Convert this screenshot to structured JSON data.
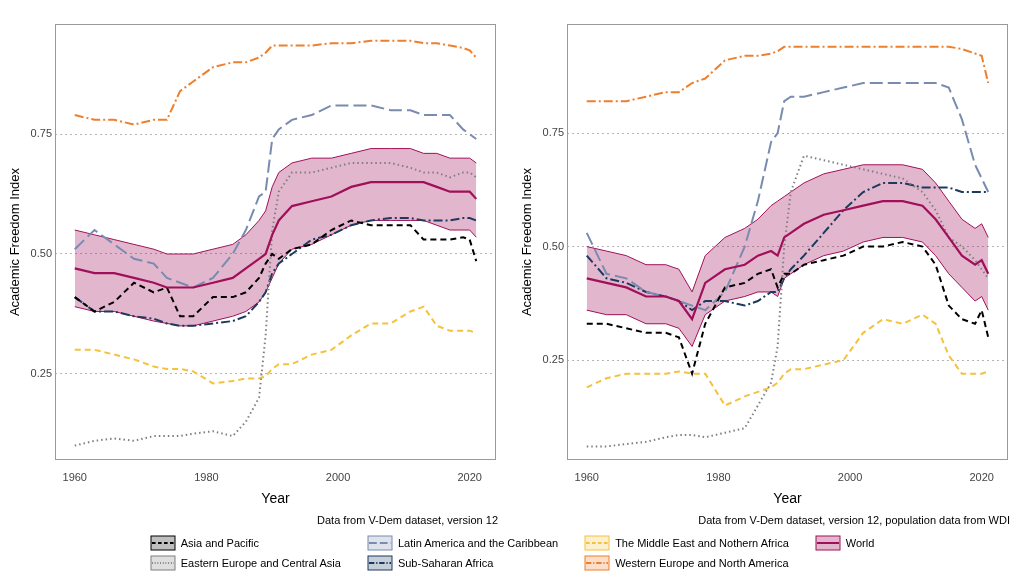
{
  "chart_data": [
    {
      "type": "line",
      "caption": "Data from V-Dem dataset, version 12",
      "x_label": "Year",
      "y_label": "Academic Freedom Index",
      "xlim": [
        1957,
        2024
      ],
      "xticks": [
        1960,
        1980,
        2000,
        2020
      ],
      "ylim": [
        0.07,
        0.98
      ],
      "yticks": [
        0.25,
        {
          "value": 0.5,
          "label": "0.50"
        },
        0.75
      ],
      "grid": "y",
      "legend": "bottom",
      "x": [
        1960,
        1963,
        1966,
        1969,
        1972,
        1974,
        1976,
        1978,
        1981,
        1984,
        1986,
        1988,
        1989,
        1990,
        1991,
        1993,
        1996,
        1999,
        2002,
        2005,
        2008,
        2011,
        2013,
        2015,
        2017,
        2019,
        2020,
        2021
      ],
      "series": [
        {
          "name": "Asia and Pacific",
          "color": "#000000",
          "line_style": "dashed",
          "values": [
            0.41,
            0.38,
            0.4,
            0.44,
            0.42,
            0.43,
            0.37,
            0.37,
            0.41,
            0.41,
            0.42,
            0.45,
            0.48,
            0.5,
            0.49,
            0.51,
            0.52,
            0.55,
            0.57,
            0.56,
            0.56,
            0.56,
            0.53,
            0.53,
            0.53,
            0.535,
            0.53,
            0.485
          ]
        },
        {
          "name": "Eastern Europe and Central Asia",
          "color": "#7f7f7f",
          "line_style": "dotted",
          "values": [
            0.1,
            0.11,
            0.115,
            0.11,
            0.12,
            0.12,
            0.12,
            0.125,
            0.13,
            0.12,
            0.15,
            0.2,
            0.33,
            0.55,
            0.63,
            0.67,
            0.67,
            0.68,
            0.69,
            0.69,
            0.69,
            0.68,
            0.67,
            0.67,
            0.66,
            0.67,
            0.67,
            0.66
          ]
        },
        {
          "name": "Latin America and the Caribbean",
          "color": "#7a8bb0",
          "line_style": "longdash",
          "values": [
            0.51,
            0.55,
            0.52,
            0.49,
            0.48,
            0.45,
            0.44,
            0.43,
            0.45,
            0.5,
            0.55,
            0.62,
            0.63,
            0.74,
            0.76,
            0.78,
            0.79,
            0.81,
            0.81,
            0.81,
            0.8,
            0.8,
            0.79,
            0.79,
            0.79,
            0.76,
            0.75,
            0.74
          ]
        },
        {
          "name": "Sub-Saharan Africa",
          "color": "#1d3a5e",
          "line_style": "dashdot",
          "values": [
            0.41,
            0.38,
            0.38,
            0.37,
            0.365,
            0.355,
            0.35,
            0.35,
            0.355,
            0.36,
            0.37,
            0.4,
            0.42,
            0.46,
            0.48,
            0.5,
            0.53,
            0.54,
            0.56,
            0.57,
            0.575,
            0.575,
            0.57,
            0.57,
            0.57,
            0.575,
            0.575,
            0.57
          ]
        },
        {
          "name": "The Middle East and Nothern Africa",
          "color": "#f5c23e",
          "line_style": "dashed",
          "values": [
            0.3,
            0.3,
            0.29,
            0.28,
            0.265,
            0.26,
            0.26,
            0.255,
            0.23,
            0.235,
            0.24,
            0.24,
            0.245,
            0.26,
            0.27,
            0.27,
            0.29,
            0.3,
            0.33,
            0.355,
            0.355,
            0.38,
            0.39,
            0.35,
            0.34,
            0.34,
            0.34,
            0.335
          ]
        },
        {
          "name": "Western Europe and North America",
          "color": "#ee7f2d",
          "line_style": "dashdot",
          "values": [
            0.79,
            0.78,
            0.78,
            0.77,
            0.78,
            0.78,
            0.84,
            0.86,
            0.89,
            0.9,
            0.9,
            0.91,
            0.92,
            0.935,
            0.935,
            0.935,
            0.935,
            0.94,
            0.94,
            0.945,
            0.945,
            0.945,
            0.94,
            0.94,
            0.935,
            0.93,
            0.925,
            0.91
          ]
        },
        {
          "name": "World",
          "color": "#a0105a",
          "line_style": "solid",
          "values": [
            0.47,
            0.46,
            0.46,
            0.45,
            0.44,
            0.43,
            0.43,
            0.43,
            0.44,
            0.45,
            0.47,
            0.49,
            0.5,
            0.54,
            0.57,
            0.6,
            0.61,
            0.62,
            0.64,
            0.65,
            0.65,
            0.65,
            0.65,
            0.64,
            0.63,
            0.63,
            0.63,
            0.615
          ],
          "upper": [
            0.55,
            0.54,
            0.53,
            0.52,
            0.51,
            0.5,
            0.5,
            0.5,
            0.51,
            0.52,
            0.54,
            0.57,
            0.59,
            0.64,
            0.67,
            0.69,
            0.7,
            0.7,
            0.71,
            0.72,
            0.72,
            0.72,
            0.71,
            0.71,
            0.7,
            0.7,
            0.7,
            0.69
          ],
          "lower": [
            0.39,
            0.38,
            0.38,
            0.37,
            0.36,
            0.355,
            0.35,
            0.35,
            0.36,
            0.37,
            0.38,
            0.4,
            0.42,
            0.45,
            0.48,
            0.51,
            0.52,
            0.54,
            0.56,
            0.57,
            0.57,
            0.57,
            0.57,
            0.56,
            0.55,
            0.55,
            0.55,
            0.535
          ]
        }
      ]
    },
    {
      "type": "line",
      "caption": "Data from V-Dem dataset, version 12, population data from WDI",
      "x_label": "Year",
      "y_label": "Academic Freedom Index",
      "xlim": [
        1957,
        2024
      ],
      "xticks": [
        1960,
        1980,
        2000,
        2020
      ],
      "ylim": [
        0.03,
        0.99
      ],
      "yticks": [
        0.25,
        {
          "value": 0.5,
          "label": "0.50"
        },
        0.75
      ],
      "grid": "y",
      "legend": "bottom",
      "x": [
        1960,
        1963,
        1966,
        1969,
        1972,
        1974,
        1976,
        1978,
        1981,
        1984,
        1986,
        1988,
        1989,
        1990,
        1991,
        1993,
        1996,
        1999,
        2002,
        2005,
        2008,
        2011,
        2013,
        2015,
        2017,
        2019,
        2020,
        2021
      ],
      "series": [
        {
          "name": "Asia and Pacific",
          "color": "#000000",
          "line_style": "dashed",
          "values": [
            0.33,
            0.33,
            0.32,
            0.31,
            0.31,
            0.3,
            0.22,
            0.33,
            0.41,
            0.42,
            0.44,
            0.45,
            0.41,
            0.44,
            0.44,
            0.46,
            0.47,
            0.48,
            0.5,
            0.5,
            0.51,
            0.5,
            0.46,
            0.37,
            0.34,
            0.33,
            0.36,
            0.3
          ]
        },
        {
          "name": "Eastern Europe and Central Asia",
          "color": "#7f7f7f",
          "line_style": "dotted",
          "values": [
            0.06,
            0.06,
            0.065,
            0.07,
            0.08,
            0.085,
            0.085,
            0.08,
            0.09,
            0.1,
            0.15,
            0.2,
            0.28,
            0.5,
            0.62,
            0.7,
            0.69,
            0.68,
            0.67,
            0.66,
            0.65,
            0.62,
            0.58,
            0.52,
            0.5,
            0.47,
            0.45,
            0.43
          ]
        },
        {
          "name": "Latin America and the Caribbean",
          "color": "#7a8bb0",
          "line_style": "longdash",
          "values": [
            0.53,
            0.44,
            0.43,
            0.4,
            0.39,
            0.38,
            0.37,
            0.36,
            0.4,
            0.5,
            0.6,
            0.73,
            0.75,
            0.82,
            0.83,
            0.83,
            0.84,
            0.85,
            0.86,
            0.86,
            0.86,
            0.86,
            0.86,
            0.85,
            0.78,
            0.68,
            0.65,
            0.62
          ]
        },
        {
          "name": "Sub-Saharan Africa",
          "color": "#1d3a5e",
          "line_style": "dashdot",
          "values": [
            0.48,
            0.43,
            0.42,
            0.4,
            0.39,
            0.38,
            0.36,
            0.38,
            0.38,
            0.37,
            0.38,
            0.4,
            0.4,
            0.43,
            0.45,
            0.48,
            0.53,
            0.58,
            0.62,
            0.64,
            0.64,
            0.63,
            0.63,
            0.63,
            0.62,
            0.62,
            0.62,
            0.62
          ]
        },
        {
          "name": "The Middle East and Nothern Africa",
          "color": "#f5c23e",
          "line_style": "dashed",
          "values": [
            0.19,
            0.21,
            0.22,
            0.22,
            0.22,
            0.225,
            0.22,
            0.22,
            0.15,
            0.17,
            0.18,
            0.19,
            0.2,
            0.22,
            0.23,
            0.23,
            0.24,
            0.25,
            0.31,
            0.34,
            0.33,
            0.35,
            0.33,
            0.26,
            0.22,
            0.22,
            0.22,
            0.225
          ]
        },
        {
          "name": "Western Europe and North America",
          "color": "#ee7f2d",
          "line_style": "dashdot",
          "values": [
            0.82,
            0.82,
            0.82,
            0.83,
            0.84,
            0.84,
            0.86,
            0.87,
            0.91,
            0.92,
            0.92,
            0.925,
            0.93,
            0.94,
            0.94,
            0.94,
            0.94,
            0.94,
            0.94,
            0.94,
            0.94,
            0.94,
            0.94,
            0.94,
            0.935,
            0.925,
            0.92,
            0.86
          ]
        },
        {
          "name": "World",
          "color": "#a0105a",
          "line_style": "solid",
          "values": [
            0.43,
            0.42,
            0.41,
            0.39,
            0.39,
            0.38,
            0.34,
            0.42,
            0.45,
            0.46,
            0.48,
            0.49,
            0.48,
            0.52,
            0.53,
            0.55,
            0.57,
            0.58,
            0.59,
            0.6,
            0.6,
            0.59,
            0.56,
            0.52,
            0.48,
            0.46,
            0.47,
            0.44
          ],
          "upper": [
            0.5,
            0.49,
            0.48,
            0.46,
            0.46,
            0.45,
            0.4,
            0.48,
            0.52,
            0.54,
            0.56,
            0.59,
            0.6,
            0.61,
            0.62,
            0.64,
            0.66,
            0.67,
            0.68,
            0.68,
            0.68,
            0.67,
            0.64,
            0.6,
            0.56,
            0.54,
            0.55,
            0.52
          ],
          "lower": [
            0.36,
            0.35,
            0.35,
            0.33,
            0.33,
            0.32,
            0.28,
            0.35,
            0.38,
            0.39,
            0.4,
            0.4,
            0.39,
            0.43,
            0.44,
            0.46,
            0.48,
            0.49,
            0.51,
            0.52,
            0.52,
            0.51,
            0.48,
            0.44,
            0.41,
            0.38,
            0.39,
            0.36
          ]
        }
      ]
    }
  ]
}
